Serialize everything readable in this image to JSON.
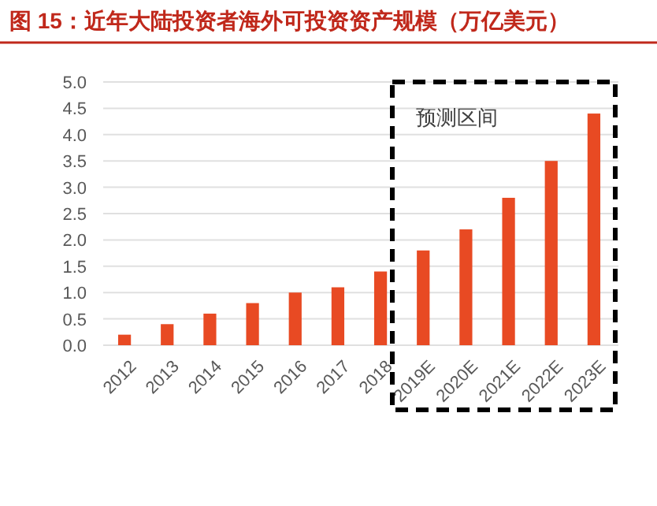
{
  "chart_data": {
    "type": "bar",
    "title": "图 15：近年大陆投资者海外可投资资产规模（万亿美元）",
    "categories": [
      "2012",
      "2013",
      "2014",
      "2015",
      "2016",
      "2017",
      "2018",
      "2019E",
      "2020E",
      "2021E",
      "2022E",
      "2023E"
    ],
    "values": [
      0.2,
      0.4,
      0.6,
      0.8,
      1.0,
      1.1,
      1.4,
      1.8,
      2.2,
      2.8,
      3.5,
      4.4
    ],
    "color": "#e84a23",
    "ylim": [
      0,
      5
    ],
    "yticks": [
      {
        "value": 0,
        "label": "0.0"
      },
      {
        "value": 0.5,
        "label": "0.5"
      },
      {
        "value": 1,
        "label": "1.0"
      },
      {
        "value": 1.5,
        "label": "1.5"
      },
      {
        "value": 2,
        "label": "2.0"
      },
      {
        "value": 2.5,
        "label": "2.5"
      },
      {
        "value": 3,
        "label": "3.0"
      },
      {
        "value": 3.5,
        "label": "3.5"
      },
      {
        "value": 4,
        "label": "4.0"
      },
      {
        "value": 4.5,
        "label": "4.5"
      },
      {
        "value": 5,
        "label": "5.0"
      }
    ],
    "grid": "y",
    "annotations": [
      "预测区间"
    ]
  }
}
